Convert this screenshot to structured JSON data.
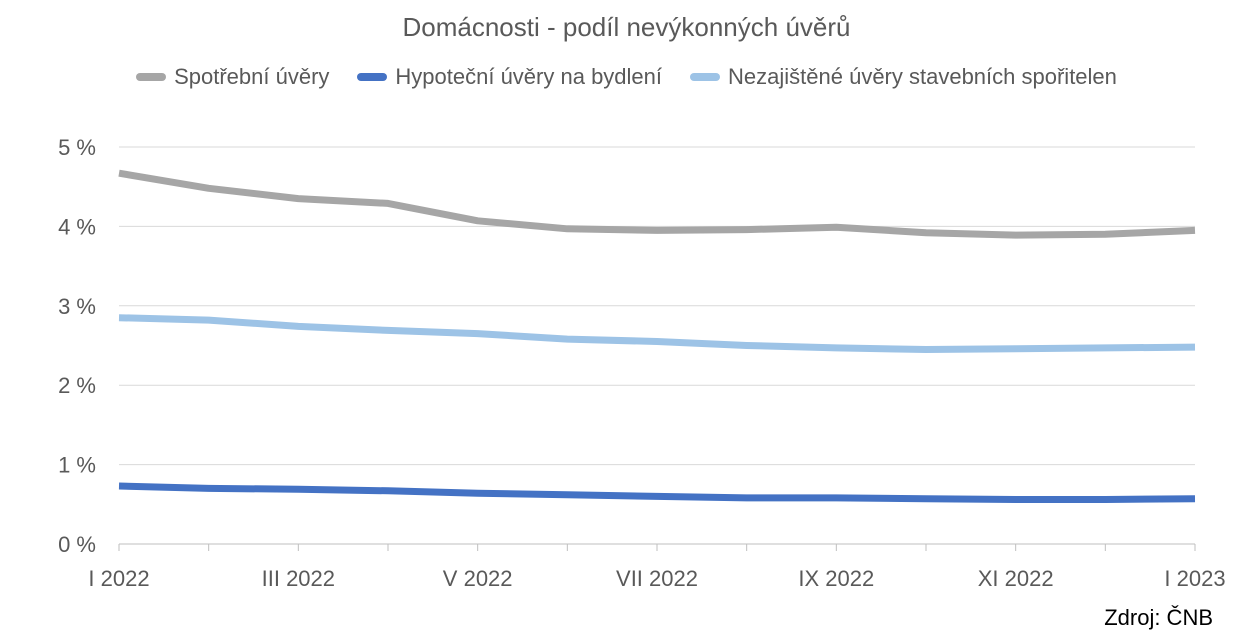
{
  "chart_data": {
    "type": "line",
    "title": "Domácnosti - podíl nevýkonných úvěrů",
    "categories": [
      "I 2022",
      "II 2022",
      "III 2022",
      "IV 2022",
      "V 2022",
      "VI 2022",
      "VII 2022",
      "VIII 2022",
      "IX 2022",
      "X 2022",
      "XI 2022",
      "XII 2022",
      "I 2023"
    ],
    "x_tick_labels": [
      "I 2022",
      "III 2022",
      "V 2022",
      "VII 2022",
      "IX 2022",
      "XI 2022",
      "I 2023"
    ],
    "y_tick_labels": [
      "0 %",
      "1 %",
      "2 %",
      "3 %",
      "4 %",
      "5 %"
    ],
    "ylim": [
      0,
      5
    ],
    "ylabel": "",
    "xlabel": "",
    "grid": true,
    "legend_position": "top",
    "series": [
      {
        "name": "Spotřební úvěry",
        "color": "#a6a6a6",
        "values": [
          4.67,
          4.48,
          4.35,
          4.29,
          4.07,
          3.97,
          3.95,
          3.96,
          3.99,
          3.92,
          3.89,
          3.9,
          3.95
        ]
      },
      {
        "name": "Hypoteční úvěry na bydlení",
        "color": "#4472c4",
        "values": [
          0.73,
          0.7,
          0.69,
          0.67,
          0.64,
          0.62,
          0.6,
          0.58,
          0.58,
          0.57,
          0.56,
          0.56,
          0.57
        ]
      },
      {
        "name": "Nezajištěné úvěry stavebních spořitelen",
        "color": "#9dc3e6",
        "values": [
          2.85,
          2.82,
          2.74,
          2.69,
          2.65,
          2.58,
          2.55,
          2.5,
          2.47,
          2.45,
          2.46,
          2.47,
          2.48
        ]
      }
    ]
  },
  "source_note": "Zdroj: ČNB"
}
